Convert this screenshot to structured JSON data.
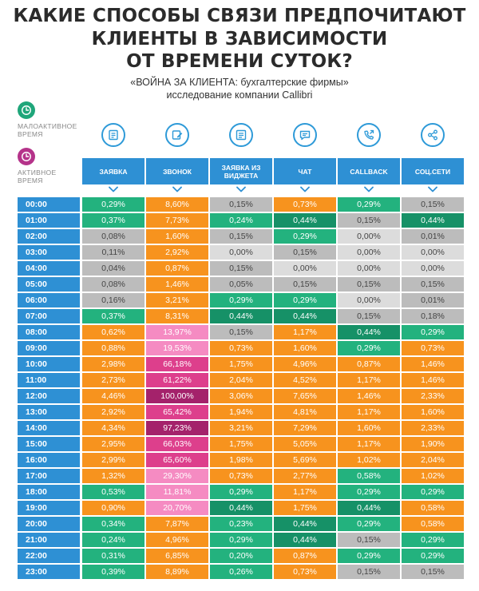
{
  "title": {
    "line1": "КАКИЕ СПОСОБЫ СВЯЗИ ПРЕДПОЧИТАЮТ",
    "line2": "КЛИЕНТЫ  В ЗАВИСИМОСТИ",
    "line3": "ОТ ВРЕМЕНИ СУТОК?"
  },
  "subtitle": {
    "line1": "«ВОЙНА ЗА КЛИЕНТА: бухгалтерские фирмы»",
    "line2": "исследование компании Callibri"
  },
  "legend": {
    "low": {
      "label_line1": "МАЛОАКТИВНОЕ",
      "label_line2": "ВРЕМЯ",
      "color": "#1fa67a",
      "icon": "clock-icon"
    },
    "active": {
      "label_line1": "АКТИВНОЕ",
      "label_line2": "ВРЕМЯ",
      "color": "#b5338a",
      "icon": "clock-icon"
    }
  },
  "colors": {
    "header_blue": "#2e90d4",
    "green": "#23b27e",
    "dark_green": "#169167",
    "gray": "#bcbcbc",
    "light_gray": "#dcdcdc",
    "orange": "#f7931e",
    "pink": "#f58bc2",
    "magenta": "#dd3f8c",
    "dark_magenta": "#a4226b"
  },
  "column_icons": [
    "form-icon",
    "phone-edit-icon",
    "widget-list-icon",
    "chat-bubble-icon",
    "callback-phone-icon",
    "share-icon"
  ],
  "chart_data": {
    "type": "table",
    "columns": [
      "ЗАЯВКА",
      "ЗВОНОК",
      "ЗАЯВКА ИЗ ВИДЖЕТА",
      "ЧАТ",
      "CALLBACK",
      "СОЦ.СЕТИ"
    ],
    "rows": [
      {
        "time": "00:00",
        "values": [
          "0,29%",
          "8,60%",
          "0,15%",
          "0,73%",
          "0,29%",
          "0,15%"
        ],
        "colors": [
          "green",
          "orange",
          "gray",
          "orange",
          "green",
          "gray"
        ]
      },
      {
        "time": "01:00",
        "values": [
          "0,37%",
          "7,73%",
          "0,24%",
          "0,44%",
          "0,15%",
          "0,44%"
        ],
        "colors": [
          "green",
          "orange",
          "green",
          "dark_green",
          "gray",
          "dark_green"
        ]
      },
      {
        "time": "02:00",
        "values": [
          "0,08%",
          "1,60%",
          "0,15%",
          "0,29%",
          "0,00%",
          "0,01%"
        ],
        "colors": [
          "gray",
          "orange",
          "gray",
          "green",
          "light_gray",
          "gray"
        ]
      },
      {
        "time": "03:00",
        "values": [
          "0,11%",
          "2,92%",
          "0,00%",
          "0,15%",
          "0,00%",
          "0,00%"
        ],
        "colors": [
          "gray",
          "orange",
          "light_gray",
          "gray",
          "light_gray",
          "light_gray"
        ]
      },
      {
        "time": "04:00",
        "values": [
          "0,04%",
          "0,87%",
          "0,15%",
          "0,00%",
          "0,00%",
          "0,00%"
        ],
        "colors": [
          "gray",
          "orange",
          "gray",
          "light_gray",
          "light_gray",
          "light_gray"
        ]
      },
      {
        "time": "05:00",
        "values": [
          "0,08%",
          "1,46%",
          "0,05%",
          "0,15%",
          "0,15%",
          "0,15%"
        ],
        "colors": [
          "gray",
          "orange",
          "gray",
          "gray",
          "gray",
          "gray"
        ]
      },
      {
        "time": "06:00",
        "values": [
          "0,16%",
          "3,21%",
          "0,29%",
          "0,29%",
          "0,00%",
          "0,01%"
        ],
        "colors": [
          "gray",
          "orange",
          "green",
          "green",
          "light_gray",
          "gray"
        ]
      },
      {
        "time": "07:00",
        "values": [
          "0,37%",
          "8,31%",
          "0,44%",
          "0,44%",
          "0,15%",
          "0,18%"
        ],
        "colors": [
          "green",
          "orange",
          "dark_green",
          "dark_green",
          "gray",
          "gray"
        ]
      },
      {
        "time": "08:00",
        "values": [
          "0,62%",
          "13,97%",
          "0,15%",
          "1,17%",
          "0,44%",
          "0,29%"
        ],
        "colors": [
          "orange",
          "pink",
          "gray",
          "orange",
          "dark_green",
          "green"
        ]
      },
      {
        "time": "09:00",
        "values": [
          "0,88%",
          "19,53%",
          "0,73%",
          "1,60%",
          "0,29%",
          "0,73%"
        ],
        "colors": [
          "orange",
          "pink",
          "orange",
          "orange",
          "green",
          "orange"
        ]
      },
      {
        "time": "10:00",
        "values": [
          "2,98%",
          "66,18%",
          "1,75%",
          "4,96%",
          "0,87%",
          "1,46%"
        ],
        "colors": [
          "orange",
          "magenta",
          "orange",
          "orange",
          "orange",
          "orange"
        ]
      },
      {
        "time": "11:00",
        "values": [
          "2,73%",
          "61,22%",
          "2,04%",
          "4,52%",
          "1,17%",
          "1,46%"
        ],
        "colors": [
          "orange",
          "magenta",
          "orange",
          "orange",
          "orange",
          "orange"
        ]
      },
      {
        "time": "12:00",
        "values": [
          "4,46%",
          "100,00%",
          "3,06%",
          "7,65%",
          "1,46%",
          "2,33%"
        ],
        "colors": [
          "orange",
          "dark_magenta",
          "orange",
          "orange",
          "orange",
          "orange"
        ]
      },
      {
        "time": "13:00",
        "values": [
          "2,92%",
          "65,42%",
          "1,94%",
          "4,81%",
          "1,17%",
          "1,60%"
        ],
        "colors": [
          "orange",
          "magenta",
          "orange",
          "orange",
          "orange",
          "orange"
        ]
      },
      {
        "time": "14:00",
        "values": [
          "4,34%",
          "97,23%",
          "3,21%",
          "7,29%",
          "1,60%",
          "2,33%"
        ],
        "colors": [
          "orange",
          "dark_magenta",
          "orange",
          "orange",
          "orange",
          "orange"
        ]
      },
      {
        "time": "15:00",
        "values": [
          "2,95%",
          "66,03%",
          "1,75%",
          "5,05%",
          "1,17%",
          "1,90%"
        ],
        "colors": [
          "orange",
          "magenta",
          "orange",
          "orange",
          "orange",
          "orange"
        ]
      },
      {
        "time": "16:00",
        "values": [
          "2,99%",
          "65,60%",
          "1,98%",
          "5,69%",
          "1,02%",
          "2,04%"
        ],
        "colors": [
          "orange",
          "magenta",
          "orange",
          "orange",
          "orange",
          "orange"
        ]
      },
      {
        "time": "17:00",
        "values": [
          "1,32%",
          "29,30%",
          "0,73%",
          "2,77%",
          "0,58%",
          "1,02%"
        ],
        "colors": [
          "orange",
          "pink",
          "orange",
          "orange",
          "green",
          "orange"
        ]
      },
      {
        "time": "18:00",
        "values": [
          "0,53%",
          "11,81%",
          "0,29%",
          "1,17%",
          "0,29%",
          "0,29%"
        ],
        "colors": [
          "green",
          "pink",
          "green",
          "orange",
          "green",
          "green"
        ]
      },
      {
        "time": "19:00",
        "values": [
          "0,90%",
          "20,70%",
          "0,44%",
          "1,75%",
          "0,44%",
          "0,58%"
        ],
        "colors": [
          "orange",
          "pink",
          "dark_green",
          "orange",
          "dark_green",
          "orange"
        ]
      },
      {
        "time": "20:00",
        "values": [
          "0,34%",
          "7,87%",
          "0,23%",
          "0,44%",
          "0,29%",
          "0,58%"
        ],
        "colors": [
          "green",
          "orange",
          "green",
          "dark_green",
          "green",
          "orange"
        ]
      },
      {
        "time": "21:00",
        "values": [
          "0,24%",
          "4,96%",
          "0,29%",
          "0,44%",
          "0,15%",
          "0,29%"
        ],
        "colors": [
          "green",
          "orange",
          "green",
          "dark_green",
          "gray",
          "green"
        ]
      },
      {
        "time": "22:00",
        "values": [
          "0,31%",
          "6,85%",
          "0,20%",
          "0,87%",
          "0,29%",
          "0,29%"
        ],
        "colors": [
          "green",
          "orange",
          "green",
          "orange",
          "green",
          "green"
        ]
      },
      {
        "time": "23:00",
        "values": [
          "0,39%",
          "8,89%",
          "0,26%",
          "0,73%",
          "0,15%",
          "0,15%"
        ],
        "colors": [
          "green",
          "orange",
          "green",
          "orange",
          "gray",
          "gray"
        ]
      }
    ]
  }
}
